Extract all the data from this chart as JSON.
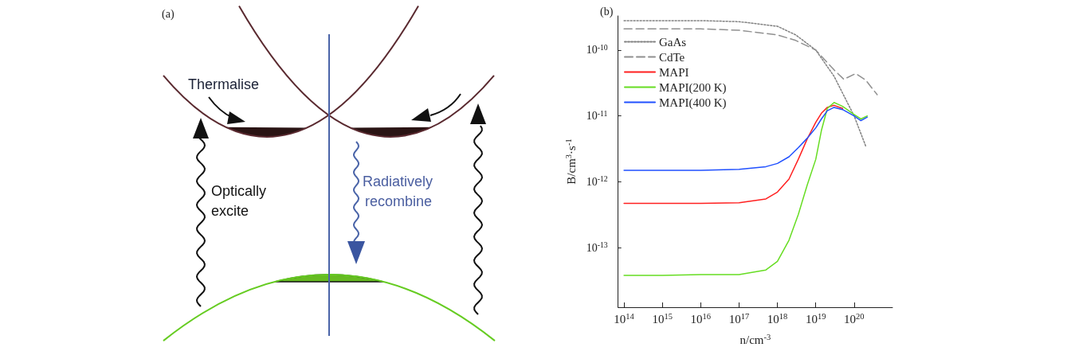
{
  "chart_data": [
    {
      "type": "other",
      "title": "(a)",
      "annotations": [
        "Thermalise",
        "Optically\nexcite",
        "Radiatively\nrecombine"
      ]
    },
    {
      "type": "line",
      "title": "(b)",
      "xlabel": "n/cm$^{-3}$",
      "ylabel": "B/cm$^{3}$·s$^{-1}$",
      "log": "xy",
      "grid": false,
      "legend": "top left",
      "marker": "none",
      "line_style": "solid",
      "xlim": [
        70000000000000.0,
        1e+21
      ],
      "xticks": [
        {
          "value": 100000000000000.0,
          "label": "10$^{14}$"
        },
        {
          "value": 1000000000000000.0,
          "label": "10$^{15}$"
        },
        {
          "value": 1e+16,
          "label": "10$^{16}$"
        },
        {
          "value": 1e+17,
          "label": "10$^{17}$"
        },
        {
          "value": 1e+18,
          "label": "10$^{18}$"
        },
        {
          "value": 1e+19,
          "label": "10$^{19}$"
        },
        {
          "value": 1e+20,
          "label": "10$^{20}$"
        }
      ],
      "ylim": [
        1.25e-14,
        3.3e-10
      ],
      "yticks": [
        {
          "value": 1e-13,
          "label": "10$^{-13}$"
        },
        {
          "value": 1e-12,
          "label": "10$^{-12}$"
        },
        {
          "value": 1e-11,
          "label": "10$^{-11}$"
        },
        {
          "value": 1e-10,
          "label": "10$^{-10}$"
        }
      ],
      "series": [
        {
          "name": "GaAs",
          "color": "#808080",
          "line_style": "dotted",
          "x": [
            100000000000000.0,
            1000000000000000.0,
            1e+16,
            1e+17,
            1e+18,
            3e+18,
            1e+19,
            3e+19,
            1e+20,
            2e+20
          ],
          "values": [
            2.8e-10,
            2.8e-10,
            2.8e-10,
            2.7e-10,
            2.3e-10,
            1.7e-10,
            1e-10,
            4e-11,
            1e-11,
            3.5e-12
          ]
        },
        {
          "name": "CdTe",
          "color": "#909090",
          "line_style": "dashed",
          "x": [
            100000000000000.0,
            1000000000000000.0,
            1e+16,
            1e+17,
            1e+18,
            3e+18,
            1e+19,
            3e+19,
            5.4e+19,
            1.1e+20,
            2e+20,
            4e+20
          ],
          "values": [
            2.1e-10,
            2.1e-10,
            2.1e-10,
            2e-10,
            1.7e-10,
            1.4e-10,
            1e-10,
            5e-11,
            3.6e-11,
            4.4e-11,
            3.5e-11,
            2.1e-11
          ]
        },
        {
          "name": "MAPI",
          "color": "#ff2020",
          "x": [
            100000000000000.0,
            1000000000000000.0,
            1e+16,
            1e+17,
            5e+17,
            1e+18,
            2e+18,
            3.5e+18,
            6e+18,
            1e+19,
            1.4e+19,
            2e+19,
            3e+19,
            5e+19
          ],
          "values": [
            4.7e-13,
            4.7e-13,
            4.7e-13,
            4.8e-13,
            5.5e-13,
            7e-13,
            1.1e-12,
            2.2e-12,
            4.5e-12,
            8e-12,
            1.1e-11,
            1.35e-11,
            1.45e-11,
            1.3e-11
          ]
        },
        {
          "name": "MAPI(200 K)",
          "color": "#66dd22",
          "x": [
            100000000000000.0,
            1000000000000000.0,
            1e+16,
            1e+17,
            5e+17,
            1e+18,
            2e+18,
            3.5e+18,
            6e+18,
            1e+19,
            1.4e+19,
            2e+19,
            3e+19,
            5e+19,
            1e+20,
            1.5e+20,
            2.2e+20
          ],
          "values": [
            3.8e-14,
            3.8e-14,
            3.9e-14,
            3.9e-14,
            4.6e-14,
            6.2e-14,
            1.3e-13,
            3.2e-13,
            9e-13,
            2.2e-12,
            6e-12,
            1.3e-11,
            1.6e-11,
            1.4e-11,
            1.05e-11,
            9e-12,
            1e-11
          ]
        },
        {
          "name": "MAPI(400 K)",
          "color": "#2050ff",
          "x": [
            100000000000000.0,
            1000000000000000.0,
            1e+16,
            1e+17,
            5e+17,
            1e+18,
            2e+18,
            3.5e+18,
            6e+18,
            1e+19,
            1.4e+19,
            2e+19,
            3e+19,
            5e+19,
            1e+20,
            1.5e+20,
            2.2e+20
          ],
          "values": [
            1.5e-12,
            1.5e-12,
            1.5e-12,
            1.55e-12,
            1.7e-12,
            1.9e-12,
            2.4e-12,
            3.3e-12,
            4.6e-12,
            6.6e-12,
            9e-12,
            1.2e-11,
            1.35e-11,
            1.25e-11,
            1e-11,
            8.5e-12,
            9.6e-12
          ]
        }
      ]
    }
  ]
}
